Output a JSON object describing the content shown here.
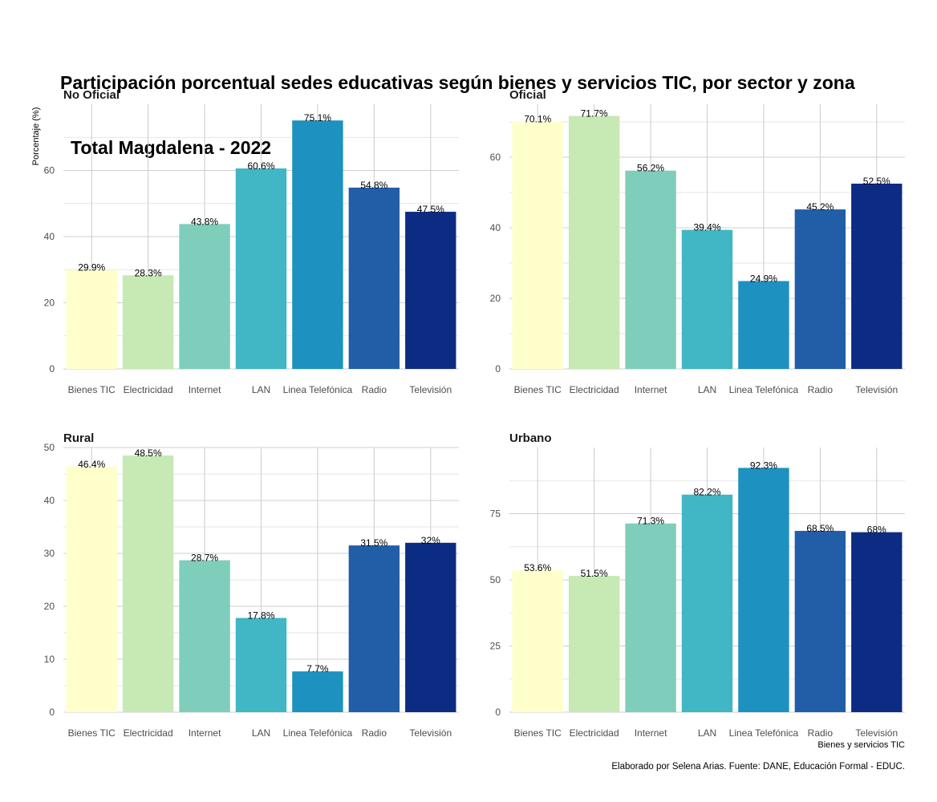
{
  "title_lines": [
    "Participación porcentual sedes educativas según bienes y servicios TIC, por sector y zona",
    "Total Magdalena - 2022"
  ],
  "chart_data": {
    "type": "bar",
    "categories": [
      "Bienes TIC",
      "Electricidad",
      "Internet",
      "LAN",
      "Linea Telefónica",
      "Radio",
      "Televisión"
    ],
    "colors": [
      "#ffffcc",
      "#c7e9b4",
      "#7fcdbb",
      "#41b6c4",
      "#1d91c0",
      "#225ea8",
      "#0c2c84"
    ],
    "ylabel": "Porcentaje (%)",
    "xlabel": "Bienes y servicios TIC",
    "caption": "Elaborado por Selena Arias. Fuente: DANE, Educación Formal - EDUC.",
    "grid": true,
    "facets": [
      {
        "name": "No Oficial",
        "values": [
          29.9,
          28.3,
          43.8,
          60.6,
          75.1,
          54.8,
          47.5
        ],
        "labels": [
          "29.9%",
          "28.3%",
          "43.8%",
          "60.6%",
          "75.1%",
          "54.8%",
          "47.5%"
        ],
        "ylim": [
          0,
          80
        ],
        "yticks": [
          0,
          20,
          40,
          60
        ]
      },
      {
        "name": "Oficial",
        "values": [
          70.1,
          71.7,
          56.2,
          39.4,
          24.9,
          45.2,
          52.5
        ],
        "labels": [
          "70.1%",
          "71.7%",
          "56.2%",
          "39.4%",
          "24.9%",
          "45.2%",
          "52.5%"
        ],
        "ylim": [
          0,
          75
        ],
        "yticks": [
          0,
          20,
          40,
          60
        ]
      },
      {
        "name": "Rural",
        "values": [
          46.4,
          48.5,
          28.7,
          17.8,
          7.7,
          31.5,
          32
        ],
        "labels": [
          "46.4%",
          "48.5%",
          "28.7%",
          "17.8%",
          "7.7%",
          "31.5%",
          "32%"
        ],
        "ylim": [
          0,
          50
        ],
        "yticks": [
          0,
          10,
          20,
          30,
          40,
          50
        ]
      },
      {
        "name": "Urbano",
        "values": [
          53.6,
          51.5,
          71.3,
          82.2,
          92.3,
          68.5,
          68
        ],
        "labels": [
          "53.6%",
          "51.5%",
          "71.3%",
          "82.2%",
          "92.3%",
          "68.5%",
          "68%"
        ],
        "ylim": [
          0,
          100
        ],
        "yticks": [
          0,
          25,
          50,
          75
        ]
      }
    ]
  }
}
